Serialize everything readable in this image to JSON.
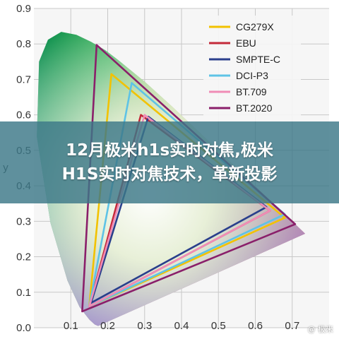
{
  "chart_data": {
    "type": "line",
    "xlim": [
      0.0,
      0.8
    ],
    "ylim": [
      0.0,
      0.9
    ],
    "x_ticks": [
      0.1,
      0.2,
      0.3,
      0.4,
      0.5,
      0.6,
      0.7
    ],
    "y_ticks": [
      0.0,
      0.1,
      0.2,
      0.3,
      0.4,
      0.5,
      0.6,
      0.7,
      0.8,
      0.9
    ],
    "ylabel": "y",
    "xlabel": "",
    "grid": true,
    "legend_position": "top-right",
    "spectral_locus": [
      [
        0.174,
        0.005
      ],
      [
        0.165,
        0.009
      ],
      [
        0.15,
        0.023
      ],
      [
        0.124,
        0.058
      ],
      [
        0.091,
        0.133
      ],
      [
        0.045,
        0.295
      ],
      [
        0.008,
        0.538
      ],
      [
        0.014,
        0.75
      ],
      [
        0.038,
        0.812
      ],
      [
        0.074,
        0.834
      ],
      [
        0.115,
        0.826
      ],
      [
        0.155,
        0.806
      ],
      [
        0.194,
        0.782
      ],
      [
        0.229,
        0.754
      ],
      [
        0.302,
        0.692
      ],
      [
        0.374,
        0.624
      ],
      [
        0.444,
        0.555
      ],
      [
        0.513,
        0.487
      ],
      [
        0.575,
        0.424
      ],
      [
        0.627,
        0.372
      ],
      [
        0.666,
        0.334
      ],
      [
        0.692,
        0.308
      ],
      [
        0.735,
        0.265
      ]
    ],
    "series": [
      {
        "name": "CG279X",
        "color": "#f2c200",
        "points": [
          [
            0.68,
            0.31
          ],
          [
            0.21,
            0.715
          ],
          [
            0.15,
            0.06
          ]
        ]
      },
      {
        "name": "EBU",
        "color": "#c42a3a",
        "points": [
          [
            0.64,
            0.33
          ],
          [
            0.29,
            0.6
          ],
          [
            0.15,
            0.06
          ]
        ]
      },
      {
        "name": "SMPTE-C",
        "color": "#2a3f8c",
        "points": [
          [
            0.63,
            0.34
          ],
          [
            0.31,
            0.595
          ],
          [
            0.155,
            0.07
          ]
        ]
      },
      {
        "name": "DCI-P3",
        "color": "#5ec3e6",
        "points": [
          [
            0.68,
            0.32
          ],
          [
            0.265,
            0.69
          ],
          [
            0.15,
            0.06
          ]
        ]
      },
      {
        "name": "BT.709",
        "color": "#f08cb6",
        "points": [
          [
            0.64,
            0.33
          ],
          [
            0.3,
            0.6
          ],
          [
            0.15,
            0.06
          ]
        ]
      },
      {
        "name": "BT.2020",
        "color": "#8a1f6a",
        "points": [
          [
            0.708,
            0.292
          ],
          [
            0.17,
            0.797
          ],
          [
            0.131,
            0.046
          ]
        ]
      }
    ]
  },
  "banner": {
    "line1": "12月极米h1s实时对焦,极米",
    "line2": "H1S实时对焦技术，革新投影"
  },
  "watermark": "@ 极米"
}
